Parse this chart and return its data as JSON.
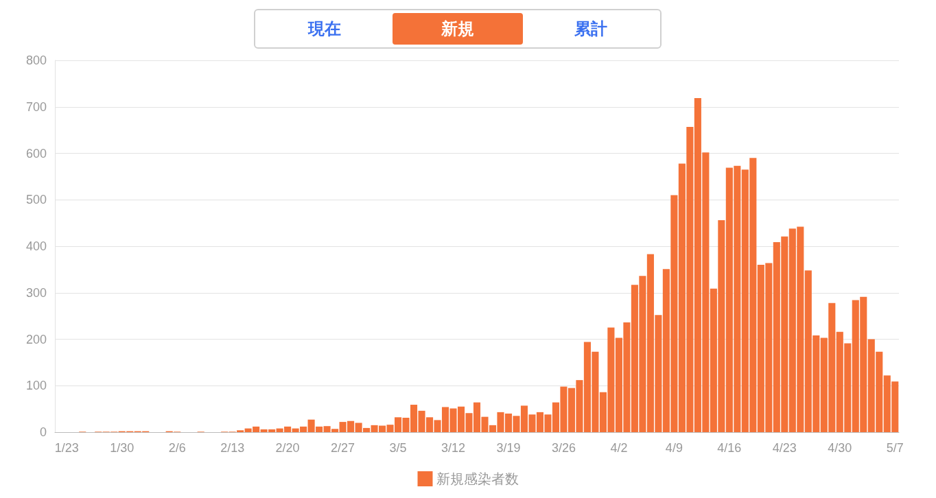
{
  "chart_data": {
    "type": "bar",
    "annotations": [
      "現在",
      "新規",
      "累計"
    ],
    "categories": [
      null,
      "1/23",
      null,
      null,
      null,
      null,
      null,
      null,
      "1/30",
      null,
      null,
      null,
      null,
      null,
      null,
      "2/6",
      null,
      null,
      null,
      null,
      null,
      null,
      "2/13",
      null,
      null,
      null,
      null,
      null,
      null,
      "2/20",
      null,
      null,
      null,
      null,
      null,
      null,
      "2/27",
      null,
      null,
      null,
      null,
      null,
      null,
      "3/5",
      null,
      null,
      null,
      null,
      null,
      null,
      "3/12",
      null,
      null,
      null,
      null,
      null,
      null,
      "3/19",
      null,
      null,
      null,
      null,
      null,
      null,
      "3/26",
      null,
      null,
      null,
      null,
      null,
      null,
      "4/2",
      null,
      null,
      null,
      null,
      null,
      null,
      "4/9",
      null,
      null,
      null,
      null,
      null,
      null,
      "4/16",
      null,
      null,
      null,
      null,
      null,
      null,
      "4/23",
      null,
      null,
      null,
      null,
      null,
      null,
      "4/30",
      null,
      null,
      null,
      null,
      null,
      null,
      "5/7"
    ],
    "series": [
      {
        "name": "新規感染者数",
        "color": "#f47238",
        "values": [
          0,
          0,
          0,
          1,
          0,
          1,
          1,
          1,
          2,
          2,
          2,
          2,
          0,
          0,
          2,
          1,
          0,
          0,
          1,
          0,
          0,
          1,
          1,
          4,
          8,
          12,
          6,
          6,
          8,
          12,
          8,
          12,
          27,
          12,
          13,
          7,
          22,
          24,
          20,
          9,
          15,
          14,
          16,
          32,
          31,
          59,
          46,
          32,
          26,
          54,
          51,
          55,
          41,
          64,
          33,
          15,
          43,
          40,
          35,
          57,
          38,
          43,
          38,
          64,
          98,
          95,
          112,
          194,
          173,
          86,
          225,
          203,
          236,
          317,
          336,
          383,
          252,
          351,
          510,
          578,
          657,
          719,
          602,
          309,
          456,
          569,
          573,
          565,
          590,
          360,
          364,
          409,
          421,
          438,
          442,
          348,
          208,
          203,
          278,
          216,
          191,
          284,
          291,
          200,
          173,
          122,
          109
        ]
      }
    ],
    "ylim": [
      0,
      800
    ],
    "yticks": [
      0,
      100,
      200,
      300,
      400,
      500,
      600,
      700,
      800
    ],
    "grid": "y",
    "legend": "bottom"
  }
}
